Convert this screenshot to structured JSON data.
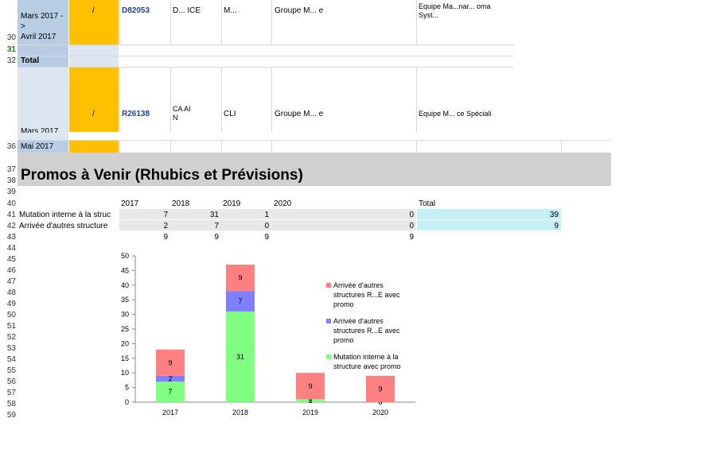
{
  "rows_top": {
    "row_30_label_line1": "Mars 2017 -",
    "row_30_label_line2": ">",
    "row_30_label_line3": "Avril 2017",
    "row_30_slash": "/",
    "row_30_id": "D82053",
    "row_30_col3": "D...  ICE",
    "row_30_col4": "M...",
    "row_30_col5": "Groupe M...                                   e",
    "row_30_col6_line1": "Equipe Ma...nar...    oma",
    "row_30_col6_line2": "Syst...",
    "row_32_label": "Total",
    "row_35_slash": "/",
    "row_35_id": "R26138",
    "row_35_col3_line1": "CA           AI",
    "row_35_col3_line2": "N",
    "row_35_col4": "CLI",
    "row_35_col5": "Groupe M...                                   e",
    "row_35_col6": "Equipe M...       ce Spéciali",
    "row_35_label_partial": "Mars 2017",
    "row_36_label": "Mai 2017"
  },
  "row_numbers": [
    "30",
    "31",
    "32",
    "36",
    "37",
    "38",
    "39",
    "40",
    "41",
    "42",
    "43",
    "44",
    "45",
    "46",
    "47",
    "48",
    "49",
    "50",
    "51",
    "52",
    "53",
    "54",
    "55",
    "56",
    "57",
    "58",
    "59"
  ],
  "section_title": "Promos à Venir (Rhubics et Prévisions)",
  "table": {
    "headers": [
      "2017",
      "2018",
      "2019",
      "2020",
      "Total"
    ],
    "rows": [
      {
        "label": "Mutation interne à la struc",
        "values": [
          "7",
          "31",
          "1",
          "0"
        ],
        "total": "39"
      },
      {
        "label": "Arrivée d'autres structure",
        "values": [
          "2",
          "7",
          "0",
          "0"
        ],
        "total": "9"
      }
    ],
    "sum_row": [
      "9",
      "9",
      "9",
      "9"
    ]
  },
  "chart_data": {
    "type": "bar",
    "stacked": true,
    "categories": [
      "2017",
      "2018",
      "2019",
      "2020"
    ],
    "series": [
      {
        "name": "Mutation interne à la structure avec promo",
        "color": "#80ff80",
        "values": [
          7,
          31,
          1,
          0
        ]
      },
      {
        "name": "Arrivée d'autres structures R...E avec promo",
        "color": "#8080ff",
        "values": [
          2,
          7,
          0,
          0
        ]
      },
      {
        "name": "Arrivée d'autres structures R...E avec promo",
        "color": "#ff8080",
        "values": [
          9,
          9,
          9,
          9
        ]
      }
    ],
    "ylim": [
      0,
      50
    ],
    "yticks": [
      "0",
      "5",
      "10",
      "15",
      "20",
      "25",
      "30",
      "35",
      "40",
      "45",
      "50"
    ],
    "legend_position": "right",
    "legend_labels": [
      [
        "Arrivée d'autres",
        "structures R...E avec",
        "promo"
      ],
      [
        "Arrivée d'autres",
        "structures R...E avec",
        "promo"
      ],
      [
        "Mutation interne à la",
        "structure avec promo"
      ]
    ]
  },
  "colors": {
    "highlight": "#ffc000",
    "blue_col": "#dce6f1",
    "total_fill": "#c5eef5",
    "banner": "#d0d0d0"
  }
}
